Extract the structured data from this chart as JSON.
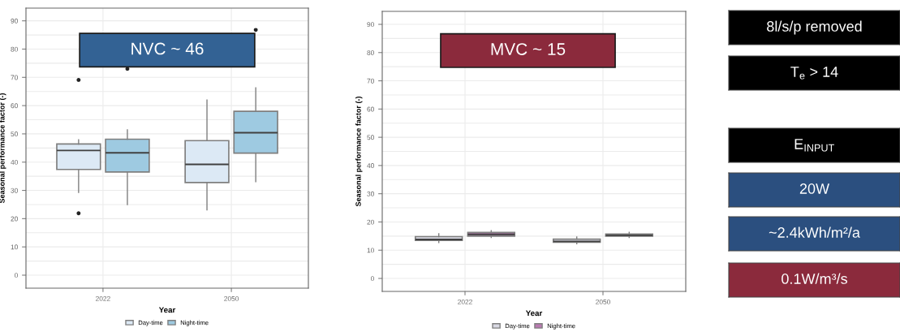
{
  "chart_data": [
    {
      "type": "box",
      "annotations": [
        "NVC ~ 46"
      ],
      "xlabel": "Year",
      "ylabel": "Seasonal performance factor (-)",
      "categories": [
        "2022",
        "2050"
      ],
      "ylim": [
        -4.6,
        94.5
      ],
      "yticks": [
        0,
        10,
        20,
        30,
        40,
        50,
        60,
        70,
        80,
        90
      ],
      "grid": true,
      "legend": "bottom",
      "series": [
        {
          "name": "Day-time",
          "color": "#dce9f5",
          "boxes": [
            {
              "low": 29.3,
              "q1": 37.4,
              "median": 44.1,
              "q3": 46.4,
              "high": 47.9,
              "outliers": [
                69.1,
                21.9
              ]
            },
            {
              "low": 23.1,
              "q1": 32.8,
              "median": 39.2,
              "q3": 47.6,
              "high": 62.0
            }
          ]
        },
        {
          "name": "Night-time",
          "color": "#9ecae1",
          "boxes": [
            {
              "low": 25.0,
              "q1": 36.5,
              "median": 43.3,
              "q3": 48.1,
              "high": 51.4,
              "outliers": [
                73.0
              ]
            },
            {
              "low": 33.1,
              "q1": 43.2,
              "median": 50.4,
              "q3": 58.0,
              "high": 66.3,
              "outliers": [
                86.8
              ]
            }
          ]
        }
      ]
    },
    {
      "type": "box",
      "annotations": [
        "MVC ~ 15"
      ],
      "xlabel": "Year",
      "ylabel": "Seasonal performance factor (-)",
      "categories": [
        "2022",
        "2050"
      ],
      "ylim": [
        -4.6,
        94.6
      ],
      "yticks": [
        0,
        10,
        20,
        30,
        40,
        50,
        60,
        70,
        80,
        90
      ],
      "grid": true,
      "legend": "bottom",
      "series": [
        {
          "name": "Day-time",
          "color": "#d9d9e3",
          "boxes": [
            {
              "low": 12.7,
              "q1": 13.5,
              "median": 13.8,
              "q3": 14.8,
              "high": 15.8
            },
            {
              "low": 12.3,
              "q1": 12.8,
              "median": 13.1,
              "q3": 13.9,
              "high": 14.7
            }
          ]
        },
        {
          "name": "Night-time",
          "color": "#b97ab1",
          "boxes": [
            {
              "low": 14.5,
              "q1": 15.0,
              "median": 15.6,
              "q3": 16.3,
              "high": 16.9
            },
            {
              "low": 14.5,
              "q1": 15.0,
              "median": 15.3,
              "q3": 15.7,
              "high": 16.3
            }
          ]
        }
      ]
    },
    {
      "type": "other",
      "annotations": [
        "8l/s/p removed",
        "T$_{e}$ > 14",
        "E$_{INPUT}$",
        "20W",
        "~2.4kWh/m²/a",
        "0.1W/m³/s"
      ],
      "colors": [
        "#000000",
        "#000000",
        "#000000",
        "#2b4f7f",
        "#2b4f7f",
        "#8b2a3c"
      ]
    }
  ]
}
